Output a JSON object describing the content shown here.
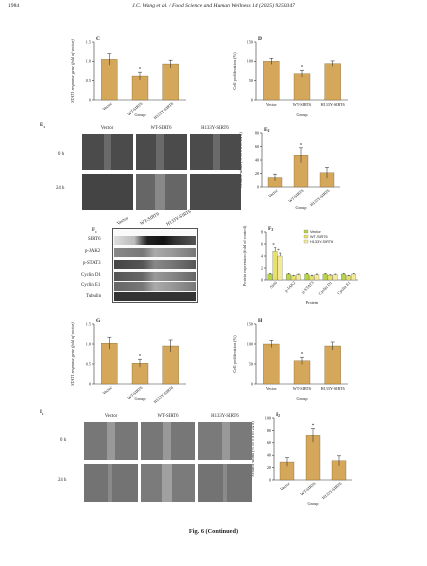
{
  "header": {
    "page_number": "1984",
    "citation": "J.C. Wang et al. / Food Science and Human Wellness 14 (2025) 9250347"
  },
  "colors": {
    "bar": "#d4a75a",
    "bar_edge": "#6b5320",
    "legend_green": "#b6d44a",
    "legend_yellow": "#e8e06a",
    "legend_light": "#f2ea9a"
  },
  "panels": {
    "C": {
      "letter": "C",
      "ylabel": "STAT1 response gene (fold of vector)",
      "xlabel": "Group"
    },
    "D": {
      "letter": "D",
      "ylabel": "Cell proliferation (%)",
      "xlabel": "Group"
    },
    "E1": {
      "letter": "E",
      "sub": "1",
      "cols": [
        "Vector",
        "WT-SIRT6",
        "H133Y-SIRT6"
      ],
      "rows": [
        "0 h",
        "24 h"
      ]
    },
    "E2": {
      "letter": "E",
      "sub": "2",
      "ylabel": "Scratch width (% of 0 h to 24 h)",
      "xlabel": "Group"
    },
    "F1": {
      "letter": "F",
      "sub": "1",
      "cols": [
        "Vector",
        "WT-SIRT6",
        "H133Y-SIRT6"
      ],
      "rows": [
        "SIRT6",
        "p-JAK2",
        "p-STAT3",
        "Cyclin D1",
        "Cyclin E1",
        "Tubulin"
      ]
    },
    "F2": {
      "letter": "F",
      "sub": "2",
      "ylabel": "Protein expression (fold of control)",
      "xlabel": "Protein",
      "legend": [
        "Vector",
        "WT-SIRT6",
        "H133Y-SIRT6"
      ]
    },
    "G": {
      "letter": "G",
      "ylabel": "STAT1 response gene (fold of vector)",
      "xlabel": "Group"
    },
    "H": {
      "letter": "H",
      "ylabel": "Cell proliferation (%)",
      "xlabel": "Group"
    },
    "I1": {
      "letter": "I",
      "sub": "1",
      "cols": [
        "Vector",
        "WT-SIRT6",
        "H133Y-SIRT6"
      ],
      "rows": [
        "0 h",
        "24 h"
      ]
    },
    "I2": {
      "letter": "I",
      "sub": "2",
      "ylabel": "Scratch width (% of 0 h to 24 h)",
      "xlabel": "Group"
    }
  },
  "caption": {
    "text": "Fig. 6 (Continued)"
  },
  "chart_data": [
    {
      "panel": "C",
      "type": "bar",
      "categories": [
        "Vector",
        "WT-SIRT6",
        "H133Y-SIRT6"
      ],
      "values": [
        1.05,
        0.62,
        0.93
      ],
      "errors": [
        0.15,
        0.1,
        0.1
      ],
      "sig": [
        "",
        "*",
        ""
      ],
      "ylim": [
        0,
        1.5
      ],
      "yticks": [
        "0",
        "0.5",
        "1.0",
        "1.5"
      ],
      "ylabel": "STAT1 response gene (fold of vector)",
      "xlabel": "Group"
    },
    {
      "panel": "D",
      "type": "bar",
      "categories": [
        "Vector",
        "WT-SIRT6",
        "H133Y-SIRT6"
      ],
      "values": [
        100,
        68,
        94
      ],
      "errors": [
        8,
        9,
        7
      ],
      "sig": [
        "",
        "*",
        ""
      ],
      "ylim": [
        0,
        150
      ],
      "yticks": [
        "0",
        "50",
        "100",
        "150"
      ],
      "ylabel": "Cell proliferation (%)",
      "xlabel": "Group"
    },
    {
      "panel": "E2",
      "type": "bar",
      "categories": [
        "Vector",
        "WT-SIRT6",
        "H133Y-SIRT6"
      ],
      "values": [
        14,
        47,
        21
      ],
      "errors": [
        5,
        11,
        8
      ],
      "sig": [
        "",
        "*",
        ""
      ],
      "ylim": [
        0,
        80
      ],
      "yticks": [
        "0",
        "20",
        "40",
        "60",
        "80"
      ],
      "ylabel": "Scratch width (% of 0 h to 24 h)",
      "xlabel": "Group"
    },
    {
      "panel": "F2",
      "type": "bar",
      "categories": [
        "Sirt6",
        "p-JAK2",
        "p-STAT3",
        "Cyclin D1",
        "Cyclin E1"
      ],
      "series": [
        {
          "name": "Vector",
          "values": [
            1.0,
            1.0,
            1.0,
            1.0,
            1.0
          ],
          "errors": [
            0.1,
            0.1,
            0.1,
            0.1,
            0.1
          ]
        },
        {
          "name": "WT-SIRT6",
          "values": [
            4.8,
            0.7,
            0.7,
            0.8,
            0.7
          ],
          "errors": [
            0.6,
            0.1,
            0.1,
            0.1,
            0.1
          ]
        },
        {
          "name": "H133Y-SIRT6",
          "values": [
            4.0,
            0.9,
            0.9,
            0.9,
            1.0
          ],
          "errors": [
            0.5,
            0.1,
            0.1,
            0.1,
            0.1
          ]
        }
      ],
      "ylim": [
        0,
        8
      ],
      "yticks": [
        "0",
        "2",
        "4",
        "6",
        "8"
      ],
      "ylabel": "Protein expression (fold of control)",
      "xlabel": "Protein"
    },
    {
      "panel": "G",
      "type": "bar",
      "categories": [
        "Vector",
        "WT-SIRT6",
        "H133Y-SIRT6"
      ],
      "values": [
        1.02,
        0.52,
        0.95
      ],
      "errors": [
        0.15,
        0.1,
        0.15
      ],
      "sig": [
        "",
        "*",
        ""
      ],
      "ylim": [
        0,
        1.5
      ],
      "yticks": [
        "0",
        "0.5",
        "1.0",
        "1.5"
      ],
      "ylabel": "STAT1 response gene (fold of vector)",
      "xlabel": "Group"
    },
    {
      "panel": "H",
      "type": "bar",
      "categories": [
        "Vector",
        "WT-SIRT6",
        "H133Y-SIRT6"
      ],
      "values": [
        100,
        58,
        95
      ],
      "errors": [
        9,
        9,
        10
      ],
      "sig": [
        "",
        "*",
        ""
      ],
      "ylim": [
        0,
        150
      ],
      "yticks": [
        "0",
        "50",
        "100",
        "150"
      ],
      "ylabel": "Cell proliferation (%)",
      "xlabel": "Group"
    },
    {
      "panel": "I2",
      "type": "bar",
      "categories": [
        "Vector",
        "WT-SIRT6",
        "H133Y-SIRT6"
      ],
      "values": [
        29,
        72,
        31
      ],
      "errors": [
        7,
        11,
        8
      ],
      "sig": [
        "",
        "*",
        ""
      ],
      "ylim": [
        0,
        100
      ],
      "yticks": [
        "0",
        "20",
        "40",
        "60",
        "80",
        "100"
      ],
      "ylabel": "Scratch width (% of 0 h to 24 h)",
      "xlabel": "Group"
    }
  ]
}
